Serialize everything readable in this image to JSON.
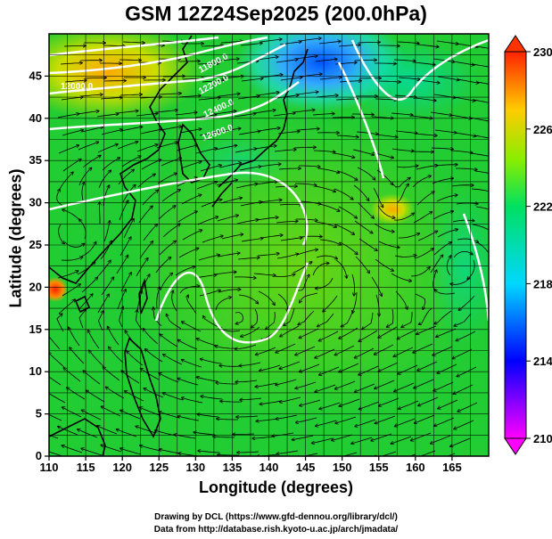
{
  "title": "GSM 12Z24Sep2025 (200.0hPa)",
  "x_axis": {
    "label": "Longitude (degrees)",
    "ticks": [
      "110",
      "115",
      "120",
      "125",
      "130",
      "135",
      "140",
      "145",
      "150",
      "155",
      "160",
      "165"
    ],
    "range": [
      110,
      170
    ]
  },
  "y_axis": {
    "label": "Latitude  (degrees)",
    "ticks": [
      "0",
      "5",
      "10",
      "15",
      "20",
      "25",
      "30",
      "35",
      "40",
      "45"
    ],
    "range": [
      0,
      50
    ]
  },
  "colorbar": {
    "ticks": [
      "230",
      "226",
      "222",
      "218",
      "214",
      "210"
    ],
    "range": [
      210,
      230
    ],
    "colors": [
      "#ff00ff",
      "#0000ff",
      "#00ffff",
      "#00ff00",
      "#ffff00",
      "#ff0000"
    ]
  },
  "contour_labels": [
    "12600.0",
    "12400.0",
    "12200.0",
    "12000.0",
    "11800.0"
  ],
  "credits": {
    "line1": "Drawing by DCL (https://www.gfd-dennou.org/library/dcl/)",
    "line2": "Data from http://database.rish.kyoto-u.ac.jp/arch/jmadata/"
  },
  "colors": {
    "plot_bg": "#22cc33",
    "coast": "#000000",
    "contour": "#ffffff"
  }
}
